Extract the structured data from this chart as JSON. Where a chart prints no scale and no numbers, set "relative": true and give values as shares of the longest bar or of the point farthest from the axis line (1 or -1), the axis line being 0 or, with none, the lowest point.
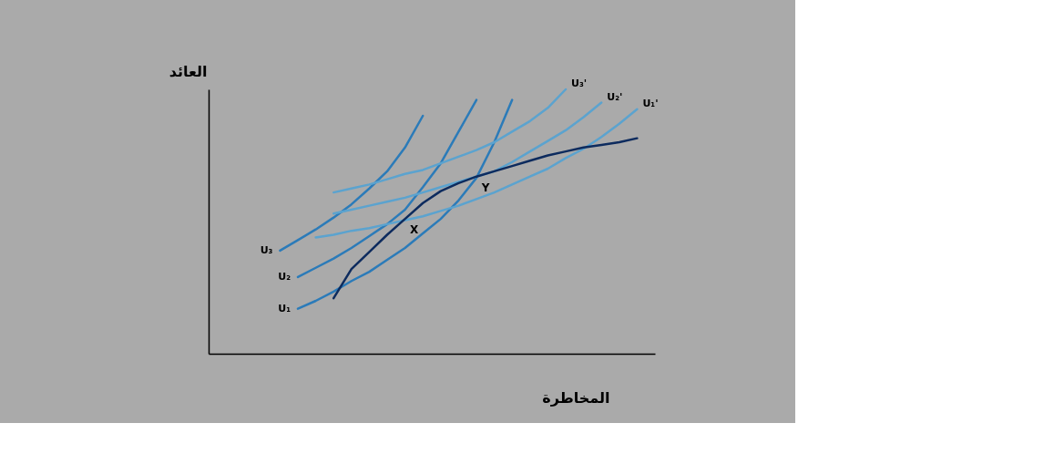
{
  "chart_data": {
    "type": "line",
    "relative": true,
    "xlabel": "المخاطرة",
    "ylabel": "العائد",
    "grid": false,
    "legend": false,
    "categories": [
      null,
      null,
      null,
      null,
      null,
      null,
      null,
      null,
      null,
      null,
      null,
      null,
      null,
      null,
      null,
      null,
      null,
      null,
      null,
      null,
      null,
      null,
      null,
      null,
      null,
      null
    ],
    "series": [
      {
        "name": "U₃",
        "color": "#2b7bb9",
        "values": [
          null,
          null,
          null,
          null,
          0.39,
          0.43,
          0.47,
          0.515,
          0.565,
          0.625,
          0.69,
          0.78,
          0.9,
          null,
          null,
          null,
          null,
          null,
          null,
          null,
          null,
          null,
          null,
          null,
          null,
          null
        ]
      },
      {
        "name": "U₂",
        "color": "#2b7bb9",
        "values": [
          null,
          null,
          null,
          null,
          null,
          0.29,
          0.325,
          0.36,
          0.4,
          0.445,
          0.49,
          0.545,
          0.63,
          0.72,
          0.84,
          0.96,
          null,
          null,
          null,
          null,
          null,
          null,
          null,
          null,
          null,
          null
        ]
      },
      {
        "name": "U₁",
        "color": "#2b7bb9",
        "values": [
          null,
          null,
          null,
          null,
          null,
          0.17,
          0.2,
          0.235,
          0.275,
          0.31,
          0.355,
          0.4,
          0.455,
          0.51,
          0.58,
          0.665,
          0.8,
          0.96,
          null,
          null,
          null,
          null,
          null,
          null,
          null,
          null
        ]
      },
      {
        "name": "U₃'",
        "color": "#5ba3cf",
        "values": [
          null,
          null,
          null,
          null,
          null,
          null,
          null,
          0.61,
          0.625,
          0.64,
          0.66,
          0.68,
          0.695,
          0.72,
          0.745,
          0.77,
          0.8,
          0.84,
          0.88,
          0.93,
          1.0,
          null,
          null,
          null,
          null,
          null
        ]
      },
      {
        "name": "U₂'",
        "color": "#5ba3cf",
        "values": [
          null,
          null,
          null,
          null,
          null,
          null,
          null,
          0.53,
          0.545,
          0.56,
          0.575,
          0.59,
          0.61,
          0.63,
          0.65,
          0.67,
          0.69,
          0.725,
          0.765,
          0.805,
          0.845,
          0.895,
          0.95,
          null,
          null,
          null
        ]
      },
      {
        "name": "U₁'",
        "color": "#5ba3cf",
        "values": [
          null,
          null,
          null,
          null,
          null,
          null,
          0.44,
          0.45,
          0.465,
          0.475,
          0.49,
          0.505,
          0.52,
          0.54,
          0.56,
          0.585,
          0.61,
          0.64,
          0.67,
          0.7,
          0.74,
          0.775,
          0.82,
          0.87,
          0.925,
          null
        ]
      },
      {
        "color": "#0d2b5e",
        "values": [
          null,
          null,
          null,
          null,
          null,
          null,
          null,
          0.21,
          0.32,
          0.385,
          0.45,
          0.51,
          0.57,
          0.615,
          0.645,
          0.67,
          0.69,
          0.71,
          0.73,
          0.75,
          0.765,
          0.78,
          0.79,
          0.8,
          0.815,
          null
        ]
      }
    ],
    "annotations": [
      "X",
      "Y"
    ]
  }
}
